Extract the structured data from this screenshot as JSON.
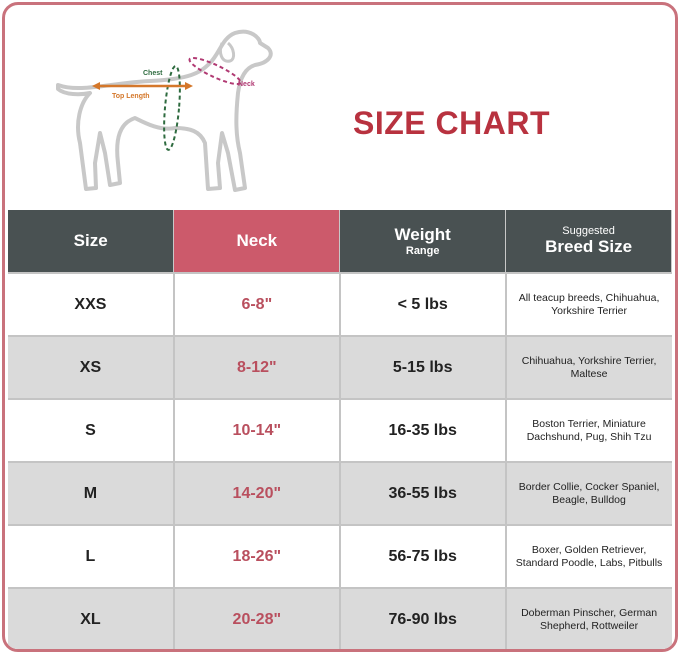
{
  "title": "SIZE CHART",
  "diagram": {
    "chest_label": "Chest",
    "neck_label": "Neck",
    "top_length_label": "Top Length"
  },
  "colors": {
    "accent": "#cc5a6b",
    "header": "#495152",
    "title": "#b8323f",
    "neck_text": "#b94f5e",
    "chest": "#2e6b3f",
    "top_length": "#d4772a"
  },
  "table": {
    "headers": {
      "size": "Size",
      "neck": "Neck",
      "weight": "Weight",
      "weight_sub": "Range",
      "breed_sup": "Suggested",
      "breed": "Breed Size"
    },
    "rows": [
      {
        "size": "XXS",
        "neck": "6-8\"",
        "weight": "< 5 lbs",
        "breed": "All teacup breeds, Chihuahua, Yorkshire Terrier"
      },
      {
        "size": "XS",
        "neck": "8-12\"",
        "weight": "5-15 lbs",
        "breed": "Chihuahua, Yorkshire Terrier, Maltese"
      },
      {
        "size": "S",
        "neck": "10-14\"",
        "weight": "16-35 lbs",
        "breed": "Boston Terrier, Miniature Dachshund, Pug, Shih Tzu"
      },
      {
        "size": "M",
        "neck": "14-20\"",
        "weight": "36-55 lbs",
        "breed": "Border Collie, Cocker Spaniel, Beagle, Bulldog"
      },
      {
        "size": "L",
        "neck": "18-26\"",
        "weight": "56-75 lbs",
        "breed": "Boxer, Golden Retriever, Standard Poodle, Labs, Pitbulls"
      },
      {
        "size": "XL",
        "neck": "20-28\"",
        "weight": "76-90 lbs",
        "breed": "Doberman Pinscher, German Shepherd, Rottweiler"
      }
    ]
  }
}
